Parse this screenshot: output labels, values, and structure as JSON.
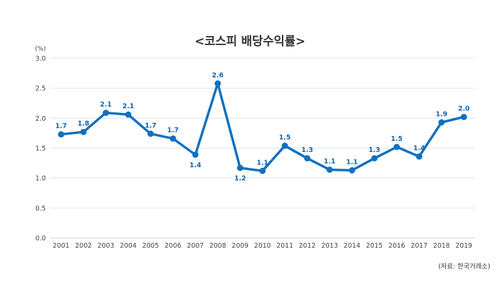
{
  "chart_data": {
    "type": "line",
    "title": "<코스피 배당수익률>",
    "unit_label": "(%)",
    "source": "(자료: 한국거래소)",
    "x": [
      "2001",
      "2002",
      "2003",
      "2004",
      "2005",
      "2006",
      "2007",
      "2008",
      "2009",
      "2010",
      "2011",
      "2012",
      "2013",
      "2014",
      "2015",
      "2016",
      "2017",
      "2018",
      "2019"
    ],
    "series": [
      {
        "values": [
          1.73,
          1.77,
          2.09,
          2.06,
          1.74,
          1.66,
          1.39,
          2.58,
          1.17,
          1.12,
          1.54,
          1.33,
          1.14,
          1.13,
          1.33,
          1.52,
          1.36,
          1.93,
          2.02
        ],
        "labels": [
          "1.7",
          "1.8",
          "2.1",
          "2.1",
          "1.7",
          "1.7",
          "1.4",
          "2.6",
          "1.2",
          "1.1",
          "1.5",
          "1.3",
          "1.1",
          "1.1",
          "1.3",
          "1.5",
          "1.4",
          "1.9",
          "2.0"
        ],
        "label_below": [
          false,
          false,
          false,
          false,
          false,
          false,
          true,
          false,
          true,
          false,
          false,
          false,
          false,
          false,
          false,
          false,
          false,
          false,
          false
        ]
      }
    ],
    "yticks": [
      "0.0",
      "0.5",
      "1.0",
      "1.5",
      "2.0",
      "2.5",
      "3.0"
    ],
    "ylim": [
      0,
      3
    ],
    "grid": true,
    "legend": "none",
    "colors": {
      "line": "#1070c0",
      "label": "#1565a8"
    }
  }
}
